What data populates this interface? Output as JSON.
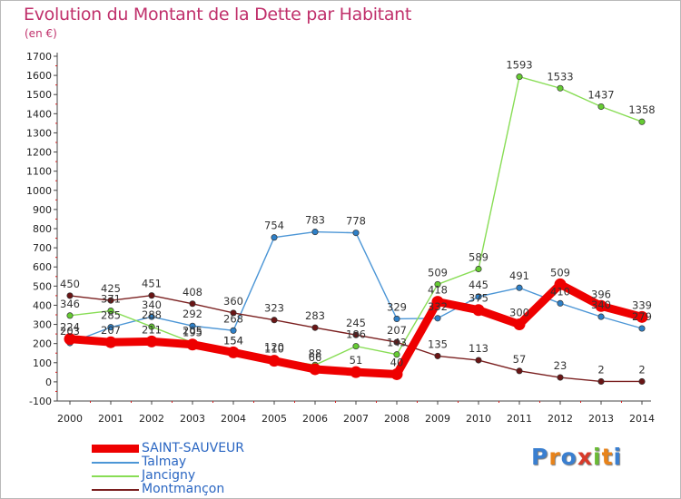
{
  "title": "Evolution du Montant de la Dette par Habitant",
  "unit": "(en €)",
  "logo": "Proxiti",
  "colors": {
    "title": "#c0306b",
    "axis": "#333333",
    "legend_text": "#2a66c2"
  },
  "chart_data": {
    "type": "line",
    "x": [
      2000,
      2001,
      2002,
      2003,
      2004,
      2005,
      2006,
      2007,
      2008,
      2009,
      2010,
      2011,
      2012,
      2013,
      2014
    ],
    "ylim": [
      -100,
      1700
    ],
    "yticks": [
      -100,
      0,
      100,
      200,
      300,
      400,
      500,
      600,
      700,
      800,
      900,
      1000,
      1100,
      1200,
      1300,
      1400,
      1500,
      1600,
      1700
    ],
    "grid": false,
    "legend_position": "bottom-left",
    "series": [
      {
        "name": "SAINT-SAUVEUR",
        "color": "#ee0000",
        "marker": "#ee0000",
        "values": [
          224,
          207,
          211,
          195,
          154,
          110,
          66,
          51,
          40,
          418,
          375,
          300,
          509,
          396,
          339
        ]
      },
      {
        "name": "Talmay",
        "color": "#4c96d6",
        "marker": "#2e80c8",
        "values": [
          203,
          285,
          340,
          292,
          268,
          754,
          783,
          778,
          329,
          332,
          445,
          491,
          410,
          340,
          279
        ]
      },
      {
        "name": "Jancigny",
        "color": "#88dd55",
        "marker": "#66cc33",
        "values": [
          346,
          371,
          288,
          205,
          154,
          120,
          88,
          186,
          143,
          509,
          589,
          1593,
          1533,
          1437,
          1358
        ]
      },
      {
        "name": "Montmançon",
        "color": "#7a1f1f",
        "marker": "#6a1515",
        "values": [
          450,
          425,
          451,
          408,
          360,
          323,
          283,
          245,
          207,
          135,
          113,
          57,
          23,
          2,
          2
        ]
      }
    ]
  }
}
